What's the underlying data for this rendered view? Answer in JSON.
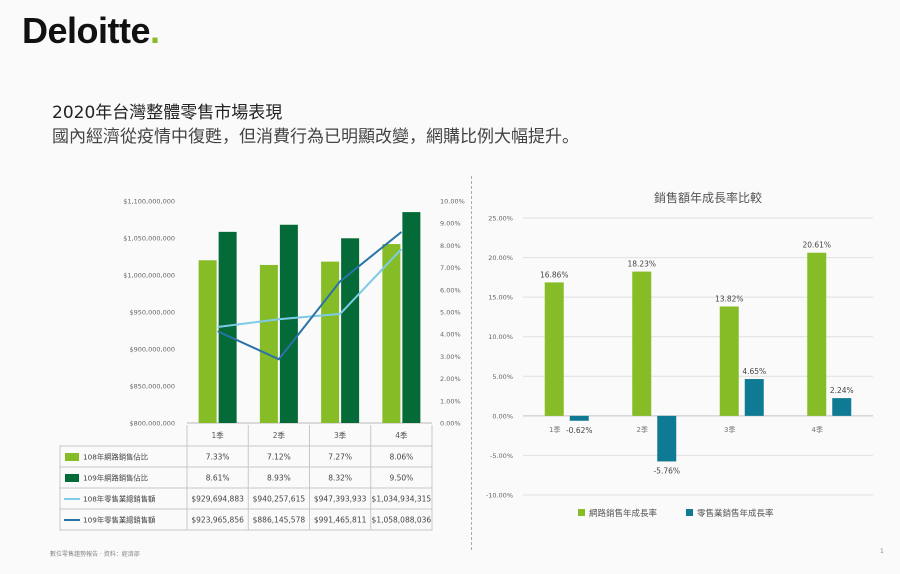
{
  "header": {
    "logo_text": "Deloitte",
    "logo_dot": ".",
    "title": "2020年台灣整體零售市場表現",
    "subtitle": "國內經濟從疫情中復甦，但消費行為已明顯改變，網購比例大幅提升。"
  },
  "footer": {
    "left_text": "數位零售趨勢報告 ‧ 資料：經濟部",
    "page_number": "1"
  },
  "colors": {
    "accent": "#86bc25",
    "dark_green": "#046a38",
    "light_blue": "#7ecbe8",
    "dark_blue": "#2a73a8",
    "teal": "#0f7a93"
  },
  "chart_data": [
    {
      "type": "bar",
      "title": "",
      "categories": [
        "1季",
        "2季",
        "3季",
        "4季"
      ],
      "series": [
        {
          "name": "108年網路銷售佔比",
          "kind": "bar",
          "axis": "right",
          "values": [
            7.33,
            7.12,
            7.27,
            8.06
          ],
          "labels": [
            "7.33%",
            "7.12%",
            "7.27%",
            "8.06%"
          ]
        },
        {
          "name": "109年網路銷售佔比",
          "kind": "bar",
          "axis": "right",
          "values": [
            8.61,
            8.93,
            8.32,
            9.5
          ],
          "labels": [
            "8.61%",
            "8.93%",
            "8.32%",
            "9.50%"
          ]
        },
        {
          "name": "108年零售業總銷售額",
          "kind": "line",
          "axis": "left",
          "values": [
            929694883,
            940257615,
            947393933,
            1034934315
          ],
          "labels": [
            "$929,694,883",
            "$940,257,615",
            "$947,393,933",
            "$1,034,934,315"
          ]
        },
        {
          "name": "109年零售業總銷售額",
          "kind": "line",
          "axis": "left",
          "values": [
            923965856,
            886145578,
            991465811,
            1058088036
          ],
          "labels": [
            "$923,965,856",
            "$886,145,578",
            "$991,465,811",
            "$1,058,088,036"
          ]
        }
      ],
      "y_left": {
        "ylim": [
          800000000,
          1100000000
        ],
        "ticks": [
          "$800,000,000",
          "$850,000,000",
          "$900,000,000",
          "$950,000,000",
          "$1,000,000,000",
          "$1,050,000,000",
          "$1,100,000,000"
        ]
      },
      "y_right": {
        "ylim": [
          0,
          10
        ],
        "ticks": [
          "0.00%",
          "1.00%",
          "2.00%",
          "3.00%",
          "4.00%",
          "5.00%",
          "6.00%",
          "7.00%",
          "8.00%",
          "9.00%",
          "10.00%"
        ]
      },
      "legend": "data-table-below"
    },
    {
      "type": "bar",
      "title": "銷售額年成長率比較",
      "categories": [
        "1季",
        "2季",
        "3季",
        "4季"
      ],
      "series": [
        {
          "name": "網路銷售年成長率",
          "values": [
            16.86,
            18.23,
            13.82,
            20.61
          ],
          "labels": [
            "16.86%",
            "18.23%",
            "13.82%",
            "20.61%"
          ]
        },
        {
          "name": "零售業銷售年成長率",
          "values": [
            -0.62,
            -5.76,
            4.65,
            2.24
          ],
          "labels": [
            "-0.62%",
            "-5.76%",
            "4.65%",
            "2.24%"
          ]
        }
      ],
      "ylim": [
        -10,
        25
      ],
      "y_ticks": [
        "-10.00%",
        "-5.00%",
        "0.00%",
        "5.00%",
        "10.00%",
        "15.00%",
        "20.00%",
        "25.00%"
      ],
      "grid": true,
      "legend": "bottom"
    }
  ]
}
